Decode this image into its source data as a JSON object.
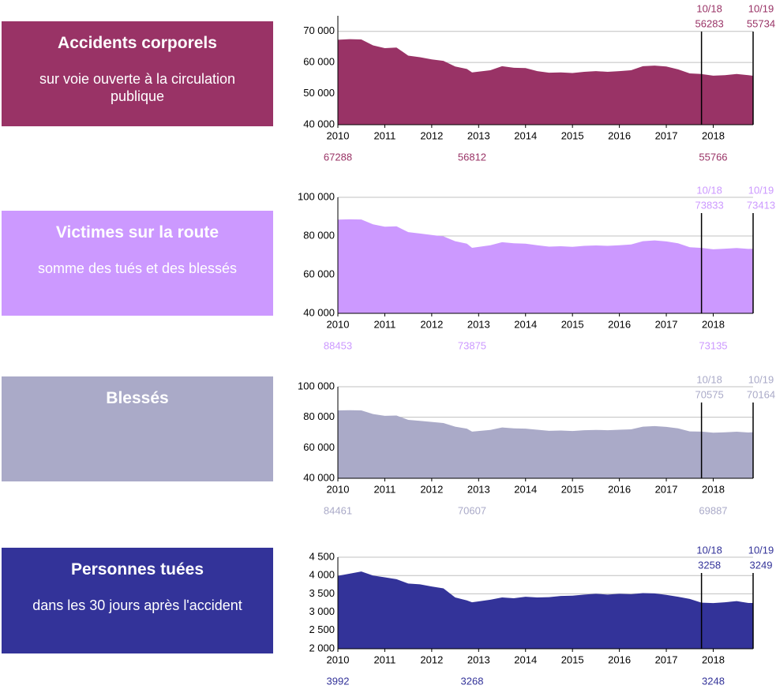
{
  "chart_data": [
    {
      "type": "area",
      "title": "Accidents corporels",
      "subtitle": "sur voie ouverte à la circulation publique",
      "color": "#993366",
      "x": [
        2010,
        2010.25,
        2010.5,
        2010.75,
        2011,
        2011.25,
        2011.5,
        2011.75,
        2012,
        2012.25,
        2012.5,
        2012.75,
        2012.86,
        2013.25,
        2013.5,
        2013.75,
        2014,
        2014.25,
        2014.5,
        2014.75,
        2015,
        2015.25,
        2015.5,
        2015.75,
        2016,
        2016.25,
        2016.5,
        2016.75,
        2017,
        2017.25,
        2017.5,
        2017.75,
        2018,
        2018.25,
        2018.5,
        2018.75,
        2018.85
      ],
      "values": [
        67288,
        67500,
        67400,
        65500,
        64600,
        64800,
        62200,
        61700,
        61000,
        60500,
        58700,
        57900,
        56812,
        57500,
        58800,
        58300,
        58200,
        57200,
        56700,
        56800,
        56600,
        57000,
        57200,
        57000,
        57200,
        57500,
        58800,
        59000,
        58700,
        57800,
        56500,
        56283,
        55766,
        55900,
        56300,
        55900,
        55734
      ],
      "xlim": [
        2010,
        2018.85
      ],
      "ylim": [
        40000,
        75000
      ],
      "xticks": [
        2010,
        2011,
        2012,
        2013,
        2014,
        2015,
        2016,
        2017,
        2018
      ],
      "yticks": [
        {
          "value": 40000,
          "label": "40 000"
        },
        {
          "value": 50000,
          "label": "50 000"
        },
        {
          "value": 60000,
          "label": "60 000"
        },
        {
          "value": 70000,
          "label": "70 000"
        }
      ],
      "markers": [
        {
          "x": 2017.75,
          "label": "10/18",
          "value": 56283
        },
        {
          "x": 2018.85,
          "label": "10/19",
          "value": 55734
        }
      ],
      "reference_labels": [
        {
          "x": 2010,
          "value": 67288
        },
        {
          "x": 2012.86,
          "value": 56812
        },
        {
          "x": 2018,
          "value": 55766
        }
      ]
    },
    {
      "type": "area",
      "title": "Victimes sur la route",
      "subtitle": "somme des tués et des blessés",
      "color": "#cc99ff",
      "x": [
        2010,
        2010.25,
        2010.5,
        2010.75,
        2011,
        2011.25,
        2011.5,
        2011.75,
        2012,
        2012.25,
        2012.5,
        2012.75,
        2012.86,
        2013.25,
        2013.5,
        2013.75,
        2014,
        2014.25,
        2014.5,
        2014.75,
        2015,
        2015.25,
        2015.5,
        2015.75,
        2016,
        2016.25,
        2016.5,
        2016.75,
        2017,
        2017.25,
        2017.5,
        2017.75,
        2018,
        2018.25,
        2018.5,
        2018.75,
        2018.85
      ],
      "values": [
        88453,
        88600,
        88500,
        86000,
        84800,
        85000,
        82000,
        81300,
        80500,
        79800,
        77300,
        76000,
        73875,
        75200,
        76800,
        76200,
        76000,
        75200,
        74500,
        74700,
        74400,
        74900,
        75100,
        74900,
        75200,
        75600,
        77300,
        77700,
        77200,
        76200,
        74200,
        73833,
        73135,
        73400,
        73800,
        73300,
        73413
      ],
      "xlim": [
        2010,
        2018.85
      ],
      "ylim": [
        40000,
        100000
      ],
      "xticks": [
        2010,
        2011,
        2012,
        2013,
        2014,
        2015,
        2016,
        2017,
        2018
      ],
      "yticks": [
        {
          "value": 40000,
          "label": "40 000"
        },
        {
          "value": 60000,
          "label": "60 000"
        },
        {
          "value": 80000,
          "label": "80 000"
        },
        {
          "value": 100000,
          "label": "100 000"
        }
      ],
      "markers": [
        {
          "x": 2017.75,
          "label": "10/18",
          "value": 73833
        },
        {
          "x": 2018.85,
          "label": "10/19",
          "value": 73413
        }
      ],
      "reference_labels": [
        {
          "x": 2010,
          "value": 88453
        },
        {
          "x": 2012.86,
          "value": 73875
        },
        {
          "x": 2018,
          "value": 73135
        }
      ]
    },
    {
      "type": "area",
      "title": "Blessés",
      "color": "#aaaac8",
      "x": [
        2010,
        2010.25,
        2010.5,
        2010.75,
        2011,
        2011.25,
        2011.5,
        2011.75,
        2012,
        2012.25,
        2012.5,
        2012.75,
        2012.86,
        2013.25,
        2013.5,
        2013.75,
        2014,
        2014.25,
        2014.5,
        2014.75,
        2015,
        2015.25,
        2015.5,
        2015.75,
        2016,
        2016.25,
        2016.5,
        2016.75,
        2017,
        2017.25,
        2017.5,
        2017.75,
        2018,
        2018.25,
        2018.5,
        2018.75,
        2018.85
      ],
      "values": [
        84461,
        84600,
        84500,
        82100,
        80900,
        81100,
        78300,
        77600,
        76900,
        76200,
        73800,
        72500,
        70607,
        71700,
        73300,
        72700,
        72500,
        71800,
        71100,
        71300,
        71000,
        71500,
        71700,
        71500,
        71800,
        72100,
        73800,
        74200,
        73700,
        72700,
        70700,
        70575,
        69887,
        70100,
        70500,
        70000,
        70164
      ],
      "xlim": [
        2010,
        2018.85
      ],
      "ylim": [
        40000,
        100000
      ],
      "xticks": [
        2010,
        2011,
        2012,
        2013,
        2014,
        2015,
        2016,
        2017,
        2018
      ],
      "yticks": [
        {
          "value": 40000,
          "label": "40 000"
        },
        {
          "value": 60000,
          "label": "60 000"
        },
        {
          "value": 80000,
          "label": "80 000"
        },
        {
          "value": 100000,
          "label": "100 000"
        }
      ],
      "markers": [
        {
          "x": 2017.75,
          "label": "10/18",
          "value": 70575
        },
        {
          "x": 2018.85,
          "label": "10/19",
          "value": 70164
        }
      ],
      "reference_labels": [
        {
          "x": 2010,
          "value": 84461
        },
        {
          "x": 2012.86,
          "value": 70607
        },
        {
          "x": 2018,
          "value": 69887
        }
      ]
    },
    {
      "type": "area",
      "title": "Personnes tuées",
      "subtitle": "dans les 30 jours après l'accident",
      "color": "#333399",
      "x": [
        2010,
        2010.25,
        2010.5,
        2010.75,
        2011,
        2011.25,
        2011.5,
        2011.75,
        2012,
        2012.25,
        2012.5,
        2012.75,
        2012.86,
        2013.25,
        2013.5,
        2013.75,
        2014,
        2014.25,
        2014.5,
        2014.75,
        2015,
        2015.25,
        2015.5,
        2015.75,
        2016,
        2016.25,
        2016.5,
        2016.75,
        2017,
        2017.25,
        2017.5,
        2017.75,
        2018,
        2018.25,
        2018.5,
        2018.75,
        2018.85
      ],
      "values": [
        3992,
        4050,
        4110,
        4000,
        3950,
        3900,
        3780,
        3760,
        3700,
        3650,
        3400,
        3320,
        3268,
        3340,
        3400,
        3380,
        3420,
        3400,
        3410,
        3440,
        3450,
        3480,
        3500,
        3480,
        3500,
        3490,
        3520,
        3510,
        3470,
        3420,
        3360,
        3258,
        3248,
        3270,
        3300,
        3250,
        3249
      ],
      "xlim": [
        2010,
        2018.85
      ],
      "ylim": [
        2000,
        4500
      ],
      "xticks": [
        2010,
        2011,
        2012,
        2013,
        2014,
        2015,
        2016,
        2017,
        2018
      ],
      "yticks": [
        {
          "value": 2000,
          "label": "2 000"
        },
        {
          "value": 2500,
          "label": "2 500"
        },
        {
          "value": 3000,
          "label": "3 000"
        },
        {
          "value": 3500,
          "label": "3 500"
        },
        {
          "value": 4000,
          "label": "4 000"
        },
        {
          "value": 4500,
          "label": "4 500"
        }
      ],
      "markers": [
        {
          "x": 2017.75,
          "label": "10/18",
          "value": 3258
        },
        {
          "x": 2018.85,
          "label": "10/19",
          "value": 3249
        }
      ],
      "reference_labels": [
        {
          "x": 2010,
          "value": 3992
        },
        {
          "x": 2012.86,
          "value": 3268
        },
        {
          "x": 2018,
          "value": 3248
        }
      ]
    }
  ]
}
